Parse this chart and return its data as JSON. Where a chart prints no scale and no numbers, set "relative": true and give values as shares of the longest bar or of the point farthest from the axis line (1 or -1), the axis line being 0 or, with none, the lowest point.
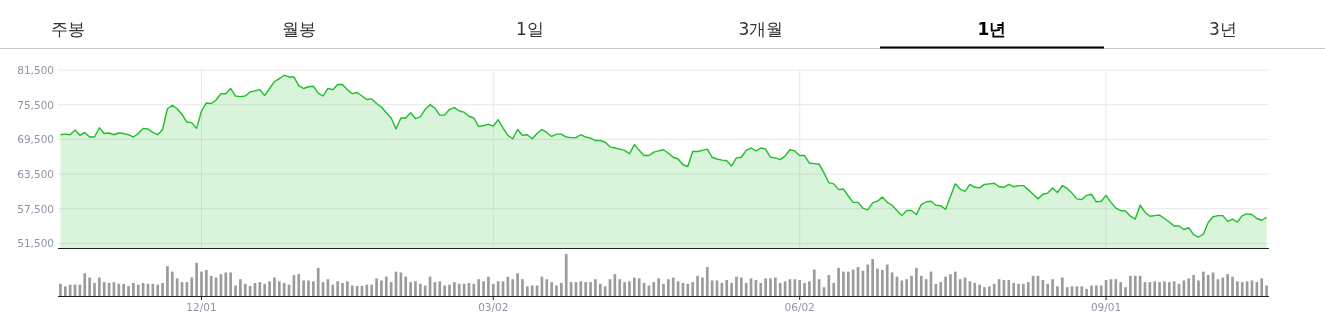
{
  "chart_data": [
    {
      "type": "area",
      "color": "#1fbf2a",
      "grid": true,
      "tick_labels": "y",
      "ylim": [
        50700,
        81500
      ],
      "yticks": [
        {
          "value": 51500,
          "label": "51,500"
        },
        {
          "value": 57500,
          "label": "57,500"
        },
        {
          "value": 63500,
          "label": "63,500"
        },
        {
          "value": 69500,
          "label": "69,500"
        },
        {
          "value": 75500,
          "label": "75,500"
        },
        {
          "value": 81500,
          "label": "81,500"
        }
      ],
      "annotations": [
        "주봉",
        "월봉",
        "1일",
        "3개월",
        "**1년**",
        "3년"
      ],
      "categories": [
        null,
        null,
        null,
        null,
        null,
        null,
        null,
        null,
        null,
        null,
        null,
        null,
        null,
        null,
        null,
        null,
        null,
        null,
        null,
        null,
        null,
        null,
        null,
        null,
        null,
        null,
        null,
        null,
        null,
        null,
        null,
        null,
        null,
        null,
        null,
        null,
        null,
        null,
        null,
        null,
        null,
        null,
        null,
        null,
        null,
        null,
        null,
        null,
        null,
        null,
        null,
        null,
        null,
        null,
        null,
        null,
        null,
        null,
        null,
        null,
        null,
        null,
        null,
        null,
        null,
        null,
        null,
        null,
        null,
        null,
        null,
        null,
        null,
        null,
        null,
        null,
        null,
        null,
        null,
        null,
        null,
        null,
        null,
        null,
        null,
        null,
        null,
        null,
        null,
        null,
        null,
        null,
        null,
        null,
        null,
        null,
        null,
        null,
        null,
        null,
        null,
        null,
        null,
        null,
        null,
        null,
        null,
        null,
        null,
        null,
        null,
        null,
        null,
        null,
        null,
        null,
        null,
        null,
        null,
        null,
        null,
        null,
        null,
        null,
        null,
        null,
        null,
        null,
        null,
        null,
        null,
        null,
        null,
        null,
        null,
        null,
        null,
        null,
        null,
        null,
        null,
        null,
        null,
        null,
        null,
        null,
        null,
        null,
        null,
        null,
        null,
        null,
        null,
        null,
        null,
        null,
        null,
        null,
        null,
        null,
        null,
        null,
        null,
        null,
        null,
        null,
        null,
        null,
        null,
        null,
        null,
        null,
        null,
        null,
        null,
        null,
        null,
        null,
        null,
        null,
        null,
        null,
        null,
        null,
        null,
        null,
        null,
        null,
        null,
        null,
        null,
        null,
        null,
        null,
        null,
        null,
        null,
        null,
        null,
        null,
        null,
        null,
        null,
        null,
        null,
        null,
        null,
        null,
        null,
        null,
        null,
        null,
        null,
        null,
        null,
        null,
        null,
        null,
        null,
        null,
        null,
        null,
        null,
        null,
        null,
        null,
        null,
        null,
        null,
        null,
        null,
        null,
        null,
        null,
        null,
        null,
        null,
        null,
        null,
        null,
        null,
        null,
        null,
        null,
        null,
        null,
        null,
        null,
        null
      ],
      "values": [
        70300,
        70400,
        70300,
        71100,
        70200,
        70700,
        69900,
        69900,
        71500,
        70500,
        70600,
        70300,
        70600,
        70500,
        70300,
        69900,
        70500,
        71400,
        71300,
        70700,
        70300,
        71200,
        74800,
        75400,
        74800,
        73800,
        72500,
        72400,
        71400,
        74400,
        75800,
        75700,
        76300,
        77400,
        77400,
        78300,
        77000,
        76900,
        77000,
        77700,
        77900,
        78100,
        77100,
        78300,
        79500,
        80000,
        80600,
        80300,
        80300,
        78800,
        78300,
        78600,
        78700,
        77500,
        77000,
        78300,
        78100,
        79000,
        79000,
        78100,
        77400,
        77600,
        77000,
        76400,
        76500,
        75700,
        75100,
        74100,
        73200,
        71300,
        73200,
        73200,
        74100,
        73100,
        73400,
        74700,
        75500,
        74900,
        73700,
        73700,
        74700,
        75000,
        74400,
        74200,
        73500,
        73200,
        71700,
        71900,
        72100,
        71800,
        72900,
        71500,
        70200,
        69600,
        71200,
        70200,
        70300,
        69600,
        70500,
        71200,
        70700,
        70000,
        70400,
        70400,
        69900,
        69800,
        69800,
        70300,
        69900,
        69700,
        69300,
        69300,
        69000,
        68200,
        68000,
        67800,
        67600,
        67000,
        68600,
        67600,
        66700,
        66700,
        67300,
        67500,
        67700,
        67100,
        66400,
        66100,
        65100,
        64800,
        67400,
        67400,
        67600,
        67800,
        66400,
        66100,
        65900,
        65800,
        64900,
        66300,
        66400,
        67600,
        68000,
        67500,
        68000,
        67800,
        66400,
        66300,
        66000,
        66600,
        67700,
        67500,
        66700,
        66700,
        65400,
        65300,
        65200,
        63700,
        62000,
        61800,
        60800,
        60900,
        59700,
        58600,
        58600,
        57600,
        57300,
        58500,
        58800,
        59500,
        58600,
        58100,
        57200,
        56300,
        57200,
        57200,
        56500,
        58200,
        58700,
        58800,
        58100,
        58000,
        57400,
        59600,
        61800,
        60900,
        60500,
        61700,
        61200,
        61100,
        61700,
        61800,
        61900,
        61300,
        61200,
        61700,
        61300,
        61500,
        61500,
        60800,
        60000,
        59200,
        60000,
        60200,
        61100,
        60300,
        61500,
        61000,
        60200,
        59200,
        59100,
        59800,
        60000,
        58700,
        58800,
        59800,
        58600,
        57600,
        57200,
        57100,
        56200,
        55700,
        58100,
        56900,
        56200,
        56300,
        56400,
        55800,
        55200,
        54500,
        54500,
        53900,
        54200,
        53000,
        52600,
        53100,
        55100,
        56100,
        56300,
        56300,
        55300,
        55700,
        55200,
        56300,
        56600,
        56500,
        55800,
        55500,
        56000
      ]
    },
    {
      "type": "bar",
      "relative": true,
      "color": "#9b9b9b",
      "tick_labels": "x",
      "categories": [
        null,
        null,
        null,
        null,
        null,
        null,
        null,
        null,
        null,
        null,
        null,
        null,
        null,
        null,
        null,
        null,
        null,
        null,
        null,
        null,
        null,
        null,
        null,
        null,
        null,
        null,
        null,
        null,
        null,
        "12/01",
        null,
        null,
        null,
        null,
        null,
        null,
        null,
        null,
        null,
        null,
        null,
        null,
        null,
        null,
        null,
        null,
        null,
        null,
        null,
        null,
        null,
        null,
        null,
        null,
        null,
        null,
        null,
        null,
        null,
        null,
        null,
        null,
        null,
        null,
        null,
        null,
        null,
        null,
        null,
        null,
        null,
        null,
        null,
        null,
        null,
        null,
        null,
        null,
        null,
        null,
        null,
        null,
        null,
        null,
        null,
        null,
        null,
        null,
        null,
        "03/02",
        null,
        null,
        null,
        null,
        null,
        null,
        null,
        null,
        null,
        null,
        null,
        null,
        null,
        null,
        null,
        null,
        null,
        null,
        null,
        null,
        null,
        null,
        null,
        null,
        null,
        null,
        null,
        null,
        null,
        null,
        null,
        null,
        null,
        null,
        null,
        null,
        null,
        null,
        null,
        null,
        null,
        null,
        null,
        null,
        null,
        null,
        null,
        null,
        null,
        null,
        null,
        null,
        null,
        null,
        null,
        null,
        null,
        null,
        null,
        null,
        null,
        null,
        "06/02",
        null,
        null,
        null,
        null,
        null,
        null,
        null,
        null,
        null,
        null,
        null,
        null,
        null,
        null,
        null,
        null,
        null,
        null,
        null,
        null,
        null,
        null,
        null,
        null,
        null,
        null,
        null,
        null,
        null,
        null,
        null,
        null,
        null,
        null,
        null,
        null,
        null,
        null,
        null,
        null,
        null,
        null,
        null,
        null,
        null,
        null,
        null,
        null,
        null,
        null,
        null,
        null,
        null,
        null,
        null,
        null,
        null,
        null,
        null,
        null,
        null,
        null,
        "09/01",
        null,
        null,
        null,
        null,
        null,
        null,
        null,
        null,
        null,
        null,
        null,
        null,
        null,
        null,
        null,
        null,
        null,
        null,
        null,
        null,
        null,
        null,
        null,
        null,
        null,
        null,
        null,
        null,
        null,
        null,
        null,
        null,
        null
      ],
      "values": [
        0.29,
        0.23,
        0.27,
        0.27,
        0.27,
        0.54,
        0.44,
        0.31,
        0.44,
        0.33,
        0.31,
        0.33,
        0.29,
        0.29,
        0.24,
        0.31,
        0.27,
        0.31,
        0.29,
        0.29,
        0.27,
        0.31,
        0.71,
        0.58,
        0.42,
        0.33,
        0.33,
        0.44,
        0.79,
        0.58,
        0.62,
        0.48,
        0.44,
        0.52,
        0.56,
        0.56,
        0.25,
        0.4,
        0.29,
        0.24,
        0.31,
        0.33,
        0.29,
        0.35,
        0.44,
        0.35,
        0.31,
        0.27,
        0.5,
        0.52,
        0.37,
        0.37,
        0.35,
        0.67,
        0.33,
        0.4,
        0.27,
        0.35,
        0.31,
        0.35,
        0.25,
        0.24,
        0.24,
        0.27,
        0.27,
        0.42,
        0.37,
        0.46,
        0.33,
        0.58,
        0.56,
        0.46,
        0.33,
        0.35,
        0.29,
        0.25,
        0.46,
        0.33,
        0.35,
        0.25,
        0.27,
        0.33,
        0.29,
        0.29,
        0.31,
        0.29,
        0.4,
        0.35,
        0.46,
        0.29,
        0.35,
        0.35,
        0.46,
        0.4,
        0.54,
        0.4,
        0.23,
        0.25,
        0.25,
        0.46,
        0.4,
        0.33,
        0.25,
        0.31,
        1.0,
        0.33,
        0.33,
        0.35,
        0.33,
        0.33,
        0.4,
        0.29,
        0.23,
        0.4,
        0.52,
        0.4,
        0.33,
        0.35,
        0.44,
        0.42,
        0.31,
        0.25,
        0.33,
        0.42,
        0.29,
        0.4,
        0.44,
        0.35,
        0.31,
        0.29,
        0.33,
        0.48,
        0.44,
        0.69,
        0.37,
        0.37,
        0.31,
        0.38,
        0.31,
        0.46,
        0.44,
        0.31,
        0.42,
        0.38,
        0.31,
        0.42,
        0.42,
        0.44,
        0.31,
        0.35,
        0.4,
        0.4,
        0.38,
        0.31,
        0.35,
        0.63,
        0.4,
        0.21,
        0.5,
        0.31,
        0.67,
        0.58,
        0.58,
        0.63,
        0.69,
        0.6,
        0.75,
        0.88,
        0.65,
        0.62,
        0.75,
        0.56,
        0.46,
        0.37,
        0.4,
        0.48,
        0.67,
        0.48,
        0.4,
        0.58,
        0.29,
        0.33,
        0.46,
        0.52,
        0.58,
        0.4,
        0.44,
        0.35,
        0.31,
        0.27,
        0.21,
        0.23,
        0.29,
        0.4,
        0.38,
        0.38,
        0.31,
        0.29,
        0.29,
        0.33,
        0.48,
        0.48,
        0.38,
        0.29,
        0.4,
        0.23,
        0.44,
        0.21,
        0.23,
        0.23,
        0.23,
        0.17,
        0.25,
        0.25,
        0.25,
        0.38,
        0.4,
        0.4,
        0.33,
        0.21,
        0.48,
        0.48,
        0.48,
        0.33,
        0.33,
        0.35,
        0.33,
        0.35,
        0.33,
        0.35,
        0.29,
        0.37,
        0.42,
        0.5,
        0.37,
        0.58,
        0.5,
        0.56,
        0.4,
        0.44,
        0.52,
        0.46,
        0.35,
        0.33,
        0.35,
        0.37,
        0.33,
        0.42,
        0.25
      ]
    }
  ]
}
